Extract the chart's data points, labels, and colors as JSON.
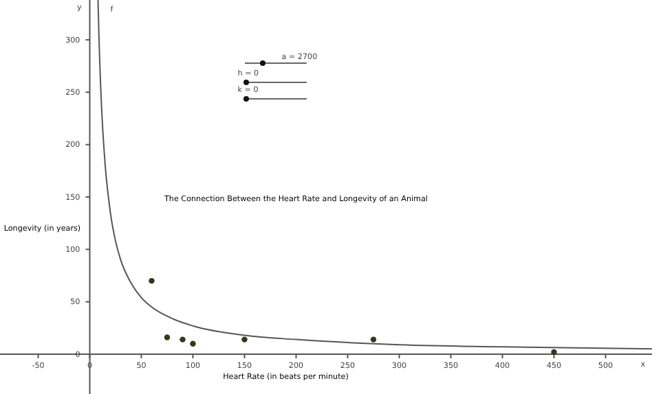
{
  "chart_data": {
    "type": "scatter",
    "title": "The Connection Between the Heart Rate and Longevity of an Animal",
    "xlabel": "Heart Rate (in beats per minute)",
    "ylabel": "Longevity (in years)",
    "xlim": [
      -87,
      545
    ],
    "ylim": [
      -38,
      338
    ],
    "xticks": [
      -50,
      0,
      50,
      100,
      150,
      200,
      250,
      300,
      350,
      400,
      450,
      500
    ],
    "yticks": [
      0,
      50,
      100,
      150,
      200,
      250,
      300
    ],
    "grid": false,
    "legend": false,
    "marker": "circle",
    "series": [
      {
        "type": "line",
        "marker": "none",
        "color": "#555555",
        "line_style": "solid",
        "x": [
          8,
          9,
          10,
          12,
          15,
          20,
          25,
          30,
          40,
          50,
          60,
          80,
          100,
          150,
          200,
          300,
          400,
          545
        ],
        "values": [
          338,
          300,
          270,
          225,
          180,
          135,
          108,
          90,
          68,
          54,
          45,
          34,
          27,
          18,
          14,
          9,
          7,
          5
        ]
      },
      {
        "color": "#2f3a1c",
        "x": [
          60,
          75,
          90,
          100,
          150,
          275,
          450
        ],
        "values": [
          70,
          16,
          14,
          10,
          14,
          14,
          2
        ]
      }
    ],
    "annotations": [
      {
        "text": "f",
        "x": 12,
        "y": 332
      },
      "y",
      "x",
      "a = 2700",
      "h = 0",
      "k = 0"
    ]
  }
}
